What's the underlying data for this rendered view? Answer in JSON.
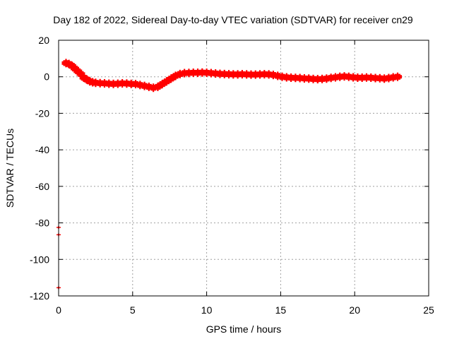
{
  "chart_data": {
    "type": "scatter",
    "title": "Day 182 of 2022, Sidereal Day-to-day VTEC variation (SDTVAR) for receiver cn29",
    "xlabel": "GPS time / hours",
    "ylabel": "SDTVAR / TECUs",
    "xlim": [
      0,
      25
    ],
    "ylim": [
      -120,
      20
    ],
    "xticks": [
      0,
      5,
      10,
      15,
      20,
      25
    ],
    "yticks": [
      20,
      0,
      -20,
      -40,
      -60,
      -80,
      -100,
      -120
    ],
    "grid": true,
    "marker": "+",
    "series": [
      {
        "name": "SDTVAR",
        "color": "#ff0000",
        "points": [
          [
            0.5,
            7.5
          ],
          [
            0.7,
            7
          ],
          [
            0.9,
            6
          ],
          [
            1.1,
            4.5
          ],
          [
            1.3,
            3
          ],
          [
            1.5,
            1.5
          ],
          [
            1.7,
            -0.5
          ],
          [
            1.9,
            -1.5
          ],
          [
            2.1,
            -2.5
          ],
          [
            2.3,
            -3
          ],
          [
            2.5,
            -3.3
          ],
          [
            2.8,
            -3.5
          ],
          [
            3.1,
            -3.6
          ],
          [
            3.4,
            -3.8
          ],
          [
            3.7,
            -3.9
          ],
          [
            4.0,
            -3.8
          ],
          [
            4.3,
            -3.6
          ],
          [
            4.6,
            -3.7
          ],
          [
            4.9,
            -3.9
          ],
          [
            5.2,
            -4
          ],
          [
            5.5,
            -4.5
          ],
          [
            5.8,
            -5
          ],
          [
            6.1,
            -5.5
          ],
          [
            6.4,
            -6
          ],
          [
            6.7,
            -5.5
          ],
          [
            7.0,
            -4
          ],
          [
            7.3,
            -2.5
          ],
          [
            7.6,
            -1
          ],
          [
            7.9,
            0.5
          ],
          [
            8.2,
            1.5
          ],
          [
            8.5,
            2
          ],
          [
            8.8,
            2.1
          ],
          [
            9.1,
            2.2
          ],
          [
            9.4,
            2.2
          ],
          [
            9.7,
            2.3
          ],
          [
            10.0,
            2.2
          ],
          [
            10.3,
            2.0
          ],
          [
            10.6,
            1.8
          ],
          [
            10.9,
            1.6
          ],
          [
            11.2,
            1.5
          ],
          [
            11.5,
            1.4
          ],
          [
            11.8,
            1.3
          ],
          [
            12.1,
            1.3
          ],
          [
            12.4,
            1.4
          ],
          [
            12.7,
            1.3
          ],
          [
            13.0,
            1.2
          ],
          [
            13.3,
            1.2
          ],
          [
            13.6,
            1.3
          ],
          [
            13.9,
            1.4
          ],
          [
            14.2,
            1.3
          ],
          [
            14.5,
            1.0
          ],
          [
            14.8,
            0.5
          ],
          [
            15.1,
            0
          ],
          [
            15.4,
            -0.3
          ],
          [
            15.7,
            -0.5
          ],
          [
            16.0,
            -0.6
          ],
          [
            16.3,
            -0.7
          ],
          [
            16.6,
            -0.9
          ],
          [
            16.9,
            -1.0
          ],
          [
            17.2,
            -1.2
          ],
          [
            17.5,
            -1.3
          ],
          [
            17.8,
            -1.2
          ],
          [
            18.1,
            -1.0
          ],
          [
            18.4,
            -0.6
          ],
          [
            18.7,
            -0.3
          ],
          [
            19.0,
            0
          ],
          [
            19.3,
            0.2
          ],
          [
            19.6,
            0
          ],
          [
            19.9,
            -0.3
          ],
          [
            20.2,
            -0.5
          ],
          [
            20.5,
            -0.5
          ],
          [
            20.8,
            -0.4
          ],
          [
            21.1,
            -0.5
          ],
          [
            21.4,
            -0.7
          ],
          [
            21.7,
            -0.8
          ],
          [
            22.0,
            -1.0
          ],
          [
            22.3,
            -0.7
          ],
          [
            22.6,
            -0.3
          ],
          [
            22.9,
            0
          ],
          [
            0.0,
            -82.5
          ],
          [
            0.0,
            -86.5
          ],
          [
            0.0,
            -115.5
          ]
        ]
      }
    ]
  }
}
